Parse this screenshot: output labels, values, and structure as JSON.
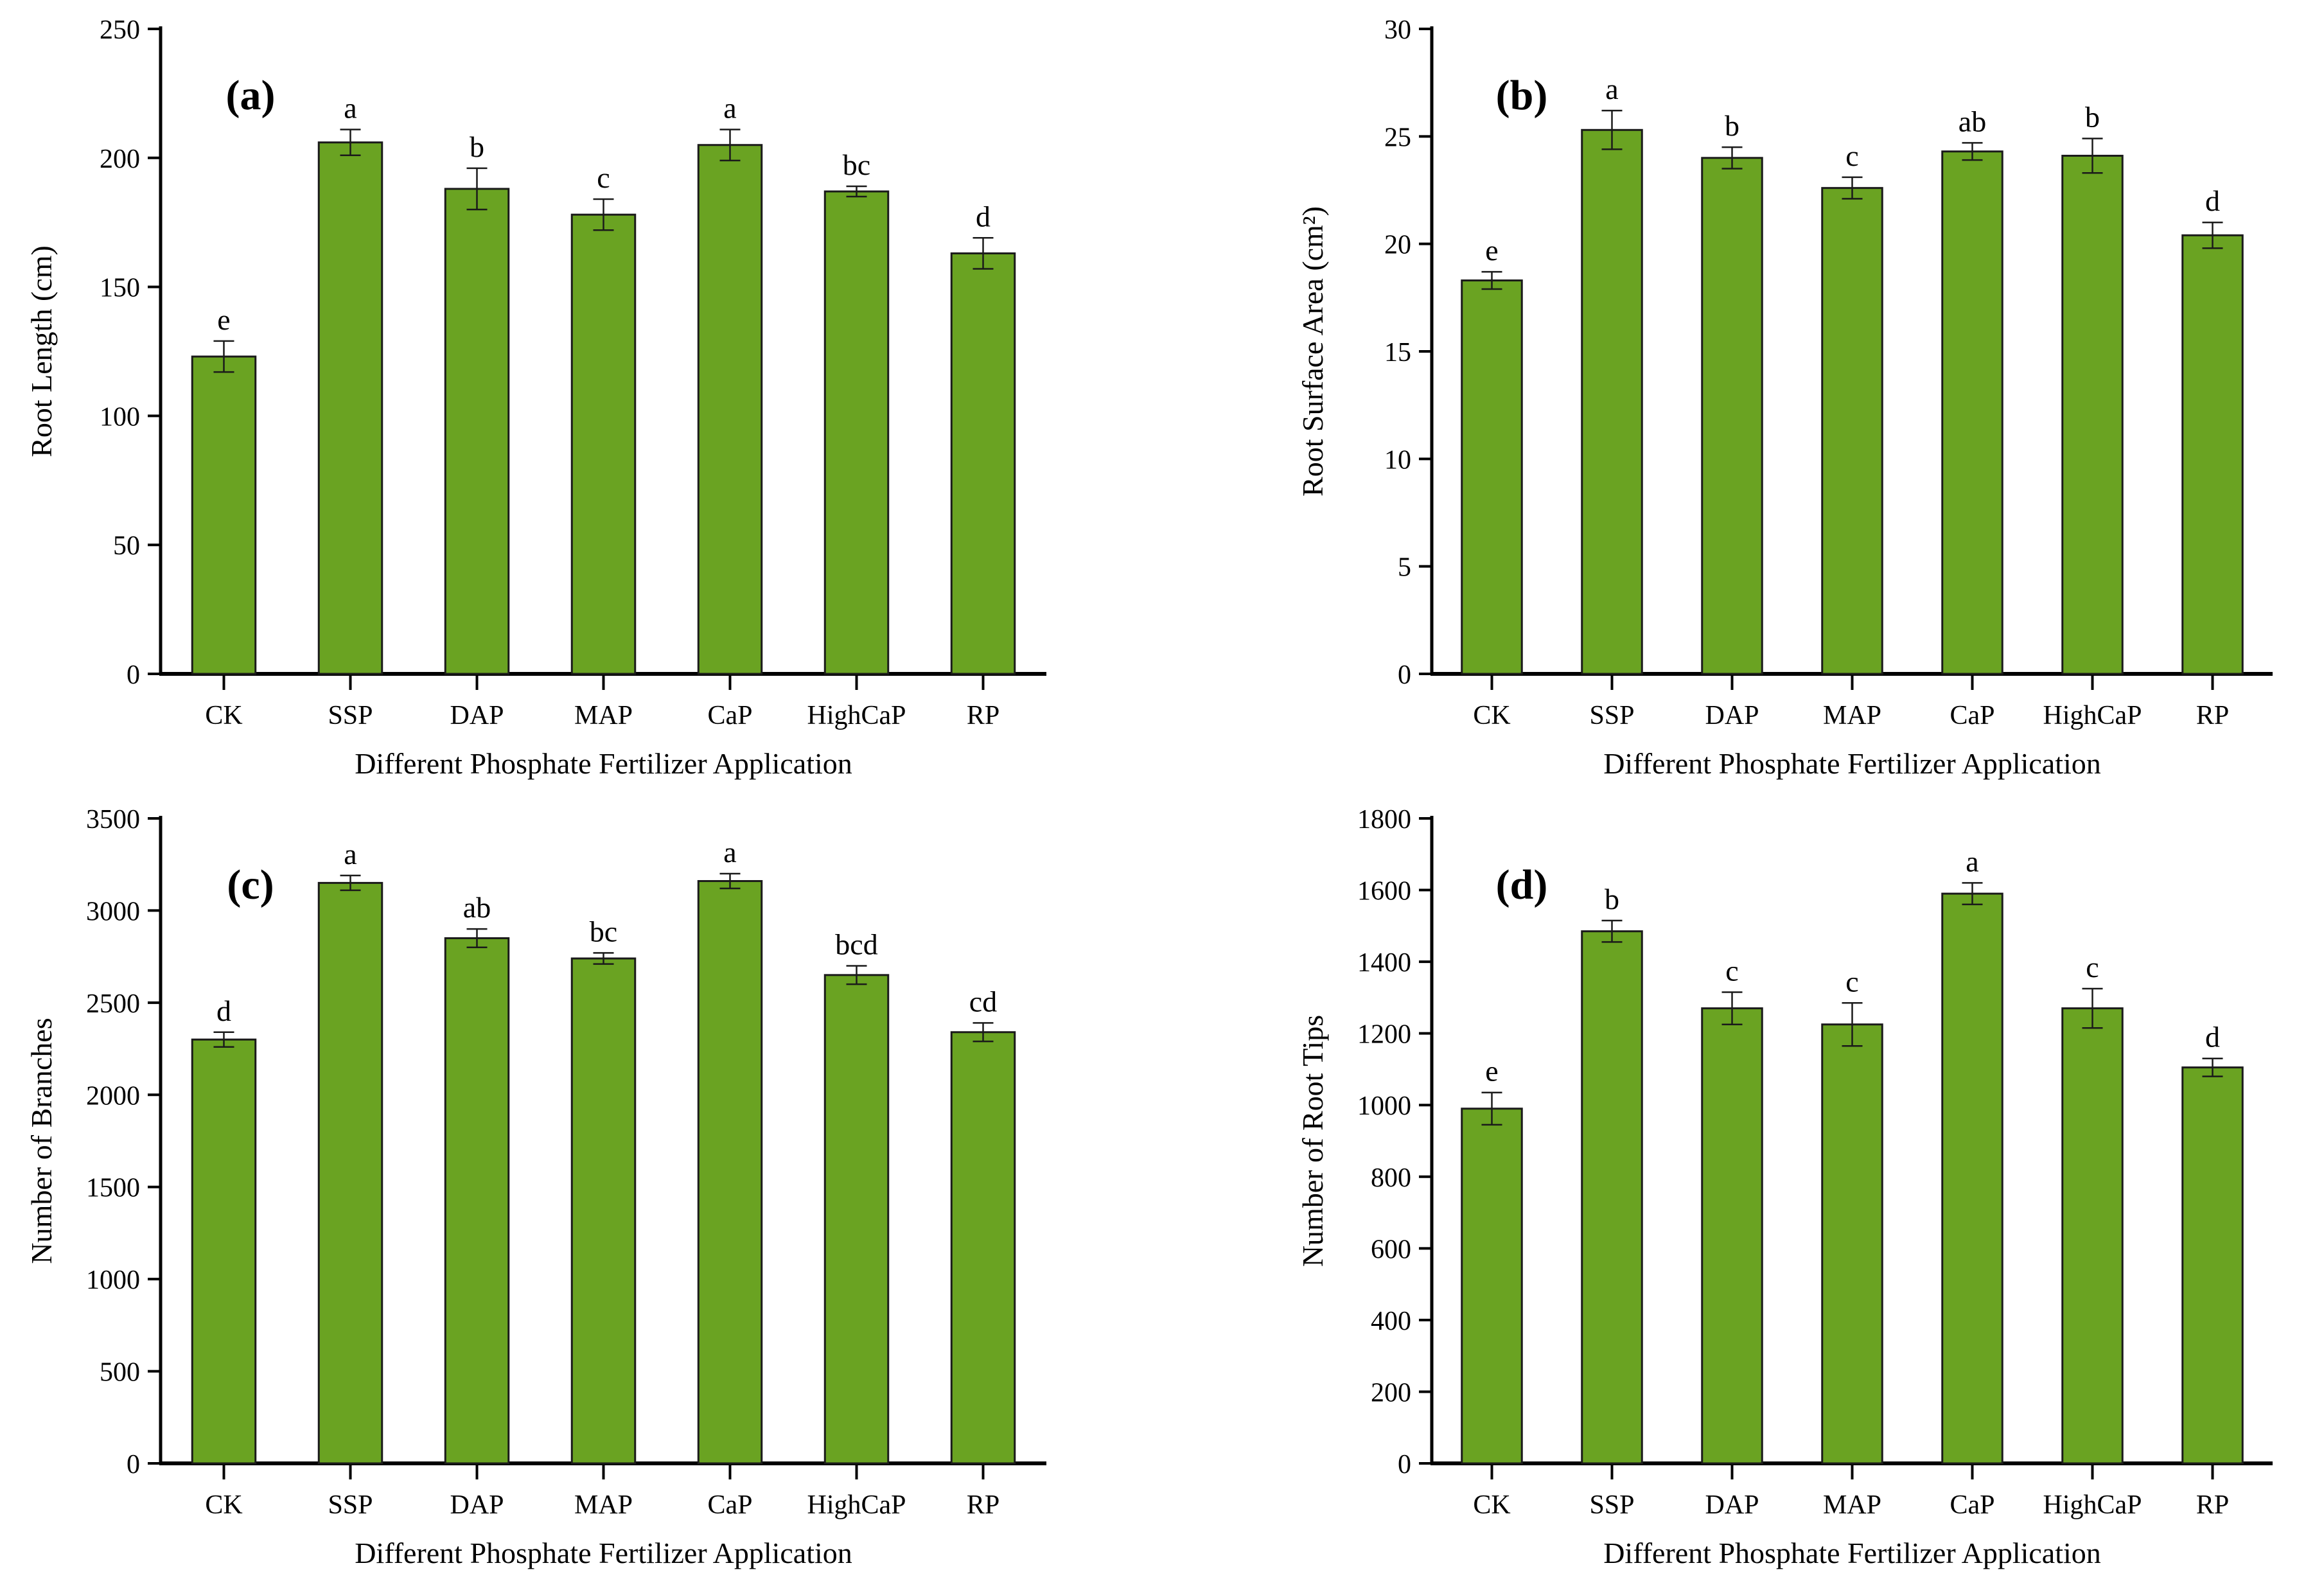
{
  "style": {
    "background": "#ffffff",
    "bar_fill": "#6aa322",
    "bar_stroke": "#1a1a1a",
    "axis_color": "#000000",
    "error_bar_color": "#1a1a1a",
    "text_color": "#000000"
  },
  "chart_data": [
    {
      "id": "a",
      "panel_label": "(a)",
      "type": "bar",
      "ylabel": "Root Length (cm)",
      "xlabel": "Different Phosphate Fertilizer Application",
      "categories": [
        "CK",
        "SSP",
        "DAP",
        "MAP",
        "CaP",
        "HighCaP",
        "RP"
      ],
      "values": [
        123,
        206,
        188,
        178,
        205,
        187,
        163
      ],
      "errors": [
        6,
        5,
        8,
        6,
        6,
        2,
        6
      ],
      "sig_letters": [
        "e",
        "a",
        "b",
        "c",
        "a",
        "bc",
        "d"
      ],
      "ylim": [
        0,
        250
      ],
      "ytick_step": 50,
      "grid": false,
      "legend": null
    },
    {
      "id": "b",
      "panel_label": "(b)",
      "type": "bar",
      "ylabel": "Root Surface Area (cm²)",
      "xlabel": "Different Phosphate Fertilizer Application",
      "categories": [
        "CK",
        "SSP",
        "DAP",
        "MAP",
        "CaP",
        "HighCaP",
        "RP"
      ],
      "values": [
        18.3,
        25.3,
        24.0,
        22.6,
        24.3,
        24.1,
        20.4
      ],
      "errors": [
        0.4,
        0.9,
        0.5,
        0.5,
        0.4,
        0.8,
        0.6
      ],
      "sig_letters": [
        "e",
        "a",
        "b",
        "c",
        "ab",
        "b",
        "d"
      ],
      "ylim": [
        0,
        30
      ],
      "ytick_step": 5,
      "grid": false,
      "legend": null
    },
    {
      "id": "c",
      "panel_label": "(c)",
      "type": "bar",
      "ylabel": "Number of Branches",
      "xlabel": "Different Phosphate Fertilizer Application",
      "categories": [
        "CK",
        "SSP",
        "DAP",
        "MAP",
        "CaP",
        "HighCaP",
        "RP"
      ],
      "values": [
        2300,
        3150,
        2850,
        2740,
        3160,
        2650,
        2340
      ],
      "errors": [
        40,
        40,
        50,
        30,
        40,
        50,
        50
      ],
      "sig_letters": [
        "d",
        "a",
        "ab",
        "bc",
        "a",
        "bcd",
        "cd"
      ],
      "ylim": [
        0,
        3500
      ],
      "ytick_step": 500,
      "grid": false,
      "legend": null
    },
    {
      "id": "d",
      "panel_label": "(d)",
      "type": "bar",
      "ylabel": "Number of Root Tips",
      "xlabel": "Different Phosphate Fertilizer Application",
      "categories": [
        "CK",
        "SSP",
        "DAP",
        "MAP",
        "CaP",
        "HighCaP",
        "RP"
      ],
      "values": [
        990,
        1485,
        1270,
        1225,
        1590,
        1270,
        1105
      ],
      "errors": [
        45,
        30,
        45,
        60,
        30,
        55,
        25
      ],
      "sig_letters": [
        "e",
        "b",
        "c",
        "c",
        "a",
        "c",
        "d"
      ],
      "ylim": [
        0,
        1800
      ],
      "ytick_step": 200,
      "grid": false,
      "legend": null
    }
  ]
}
